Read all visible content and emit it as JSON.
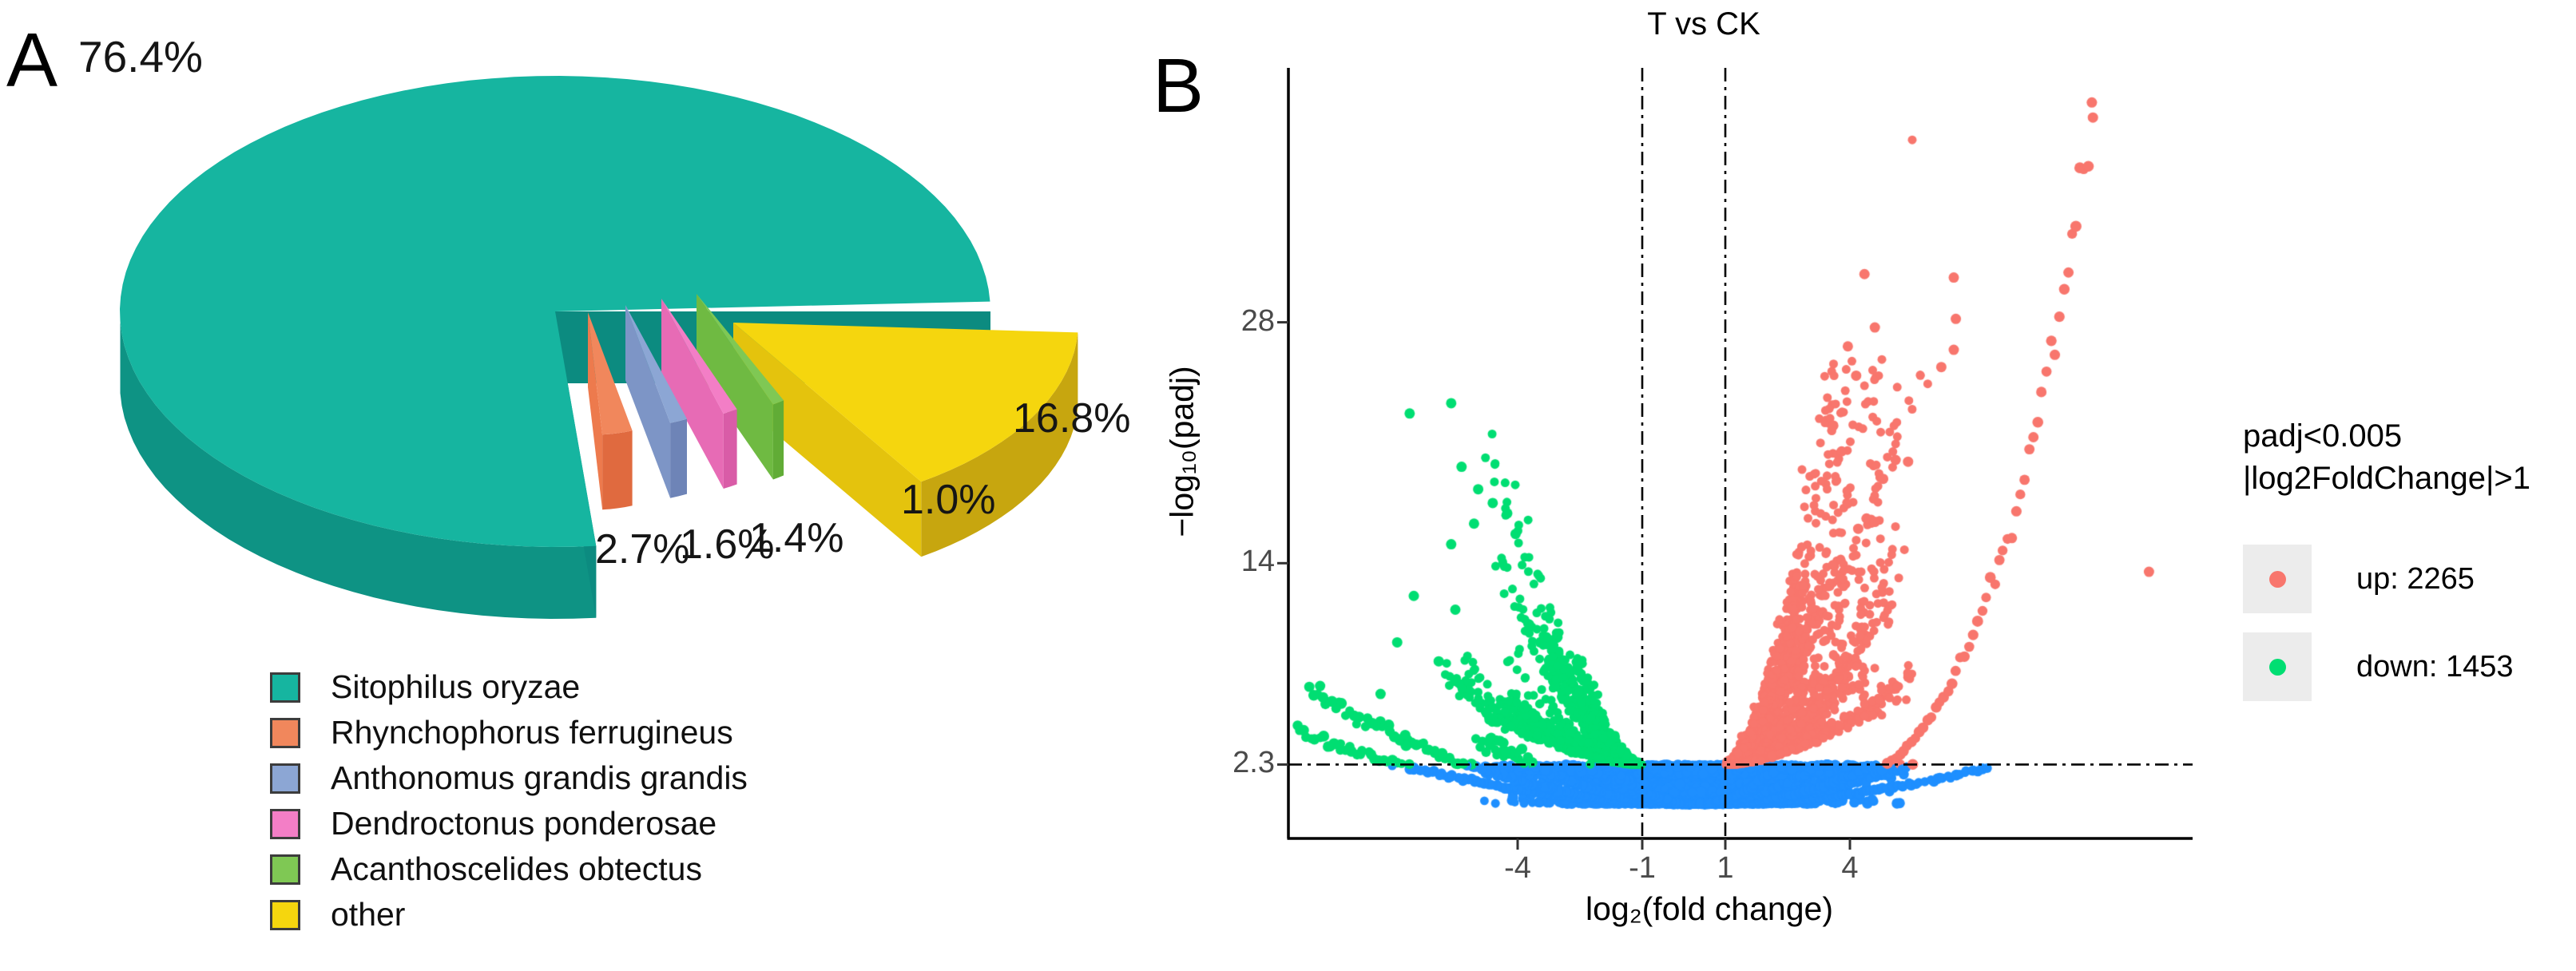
{
  "figure": {
    "background": "#ffffff",
    "panel_a_letter": "A",
    "panel_b_letter": "B"
  },
  "chart_data": [
    {
      "type": "pie",
      "panel": "A",
      "style": "3d-exploded",
      "title": "",
      "legend_position": "bottom-left",
      "slices": [
        {
          "name": "Sitophilus oryzae",
          "value_pct": 76.4,
          "display_label": "76.4%",
          "color": "#16B5A0",
          "color_face": "#0C8B80",
          "color_side": "#0E9384",
          "exploded": false
        },
        {
          "name": "Rhynchophorus ferrugineus",
          "value_pct": 2.7,
          "display_label": "2.7%",
          "color": "#F1875C",
          "color_face": "#ED7A4D",
          "color_side": "#E06A3F",
          "exploded": true
        },
        {
          "name": "Anthonomus grandis grandis",
          "value_pct": 1.6,
          "display_label": "1.6%",
          "color": "#8CA6D4",
          "color_face": "#7D95C6",
          "color_side": "#6E84B7",
          "exploded": true
        },
        {
          "name": "Dendroctonus ponderosae",
          "value_pct": 1.4,
          "display_label": "1.4%",
          "color": "#F37EC6",
          "color_face": "#E76BB5",
          "color_side": "#D95CA7",
          "exploded": true
        },
        {
          "name": "Acanthoscelides obtectus",
          "value_pct": 1.0,
          "display_label": "1.0%",
          "color": "#7FC854",
          "color_face": "#6FBA42",
          "color_side": "#61AC36",
          "exploded": true
        },
        {
          "name": "other",
          "value_pct": 16.8,
          "display_label": "16.8%",
          "color": "#F5D60E",
          "color_face": "#E4C30D",
          "color_side": "#C7A60F",
          "exploded": true
        }
      ]
    },
    {
      "type": "scatter",
      "subtype": "volcano",
      "panel": "B",
      "title": "T vs CK",
      "xlabel": "log₂(fold change)",
      "ylabel": "−log₁₀(padj)",
      "x_ticks": [
        {
          "v": -4,
          "label": "-4"
        },
        {
          "v": -1,
          "label": "-1"
        },
        {
          "v": 1,
          "label": "1"
        },
        {
          "v": 4,
          "label": "4"
        }
      ],
      "y_ticks": [
        {
          "v": 28,
          "label": "28"
        },
        {
          "v": 14,
          "label": "14"
        },
        {
          "v": 2.3,
          "label": "2.3"
        }
      ],
      "xlim": [
        -9.5,
        12.25
      ],
      "ylim": [
        -2,
        42.8
      ],
      "grid": false,
      "threshold_vlines": [
        -1,
        1
      ],
      "threshold_hline": 2.3,
      "legend_position": "right",
      "legend": {
        "title_lines": [
          "padj<0.005",
          "|log2FoldChange|>1"
        ],
        "entries": [
          {
            "key": "up",
            "label": "up:  2265",
            "count": 2265,
            "color": "#F8766D"
          },
          {
            "key": "down",
            "label": "down:  1453",
            "count": 1453,
            "color": "#00DE72"
          }
        ]
      },
      "colors": {
        "up": "#F8766D",
        "down": "#00DE72",
        "not_significant": "#1E8FFF"
      },
      "highlight_points": {
        "up": [
          [
            9.85,
            39.9
          ],
          [
            6.5,
            30.6
          ],
          [
            6.5,
            26.4
          ],
          [
            6.2,
            25.4
          ],
          [
            6.55,
            28.2
          ],
          [
            5.1,
            20.0
          ],
          [
            5.4,
            19.9
          ],
          [
            4.8,
            18.9
          ],
          [
            4.4,
            16.6
          ],
          [
            4.6,
            16.4
          ],
          [
            4.2,
            16.0
          ],
          [
            11.2,
            13.5
          ],
          [
            3.95,
            26.6
          ],
          [
            4.15,
            24.9
          ],
          [
            4.35,
            30.8
          ],
          [
            4.6,
            27.7
          ],
          [
            3.6,
            22.0
          ],
          [
            3.8,
            20.5
          ]
        ],
        "down": [
          [
            -6.6,
            22.7
          ],
          [
            -5.6,
            23.3
          ],
          [
            -5.35,
            19.6
          ],
          [
            -4.95,
            18.3
          ],
          [
            -4.6,
            17.5
          ],
          [
            -5.05,
            16.3
          ],
          [
            -5.6,
            15.1
          ],
          [
            -4.25,
            16.9
          ],
          [
            -4.05,
            15.7
          ],
          [
            -6.5,
            12.1
          ],
          [
            -5.5,
            11.3
          ],
          [
            -6.9,
            9.4
          ],
          [
            -7.3,
            6.4
          ],
          [
            -5.9,
            8.3
          ]
        ]
      },
      "cloud_model": {
        "seed": 42,
        "ns_blob": {
          "n": 2800,
          "x_mean": 0.25,
          "x_sd": 1.55,
          "y_pow": 2.0,
          "y_max": 2.26
        },
        "ns_band": {
          "n": 950,
          "x_range": [
            -5.3,
            5.5
          ],
          "y_range": [
            1.72,
            2.28
          ]
        },
        "arcs": {
          "quadratic_a": [
            0.045,
            0.08,
            0.125,
            0.185,
            0.27,
            0.38,
            0.52
          ],
          "vertex_x": [
            0.35,
            0.1,
            0.45,
            0.0,
            0.3,
            0.15,
            0.25
          ],
          "left_rise_above_threshold": 4.6,
          "quartic_right_arc": {
            "a": 0.0047,
            "x0": 0.2,
            "x_end": 9.9
          }
        },
        "down_fan": {
          "streaks": 26,
          "reach_max": 4.9,
          "y_cap": 20.5
        },
        "up_fan": {
          "streaks": 34,
          "reach_max": 5.1,
          "y_cap": 26
        }
      }
    }
  ]
}
